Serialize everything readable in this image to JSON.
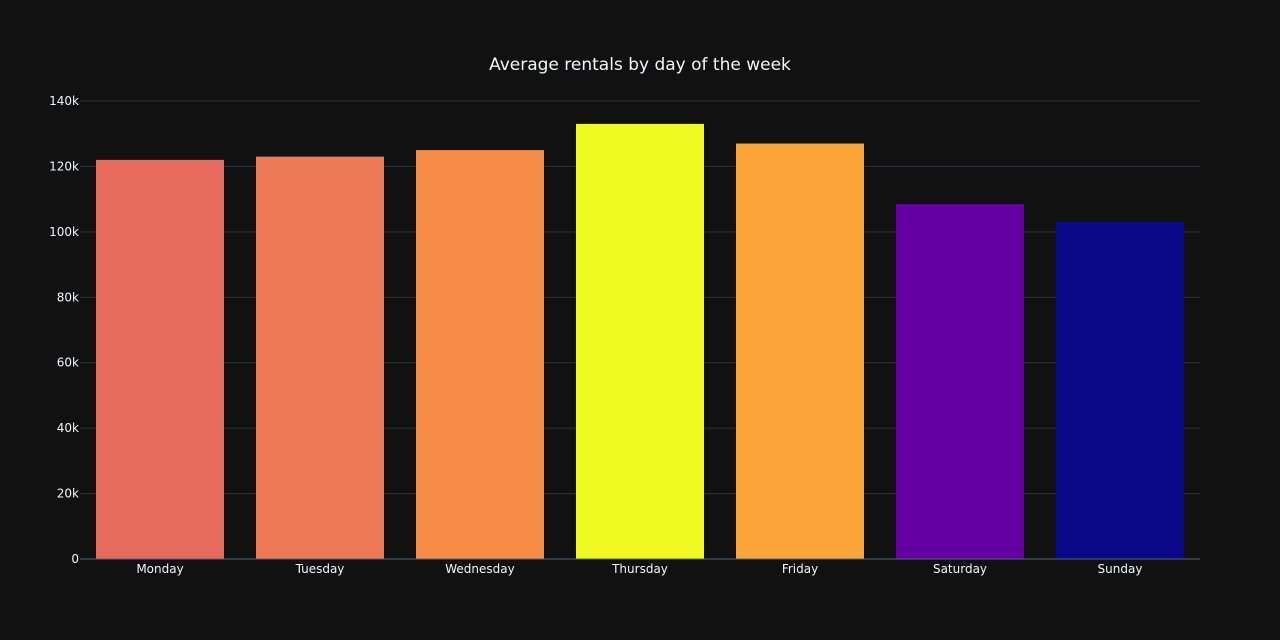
{
  "chart_data": {
    "type": "bar",
    "title": "Average rentals by day of the week",
    "xlabel": "",
    "ylabel": "",
    "categories": [
      "Monday",
      "Tuesday",
      "Wednesday",
      "Thursday",
      "Friday",
      "Saturday",
      "Sunday"
    ],
    "values": [
      122000,
      123000,
      125000,
      133000,
      127000,
      108500,
      103000
    ],
    "colors": [
      "#e76b5d",
      "#ed7957",
      "#f58b45",
      "#f0f921",
      "#fca63a",
      "#6500a3",
      "#0d0887"
    ],
    "ylim": [
      0,
      140000
    ],
    "yticks": [
      0,
      20000,
      40000,
      60000,
      80000,
      100000,
      120000,
      140000
    ],
    "ytick_labels": [
      "0",
      "20k",
      "40k",
      "60k",
      "80k",
      "100k",
      "120k",
      "140k"
    ],
    "grid": true,
    "legend": "none"
  }
}
